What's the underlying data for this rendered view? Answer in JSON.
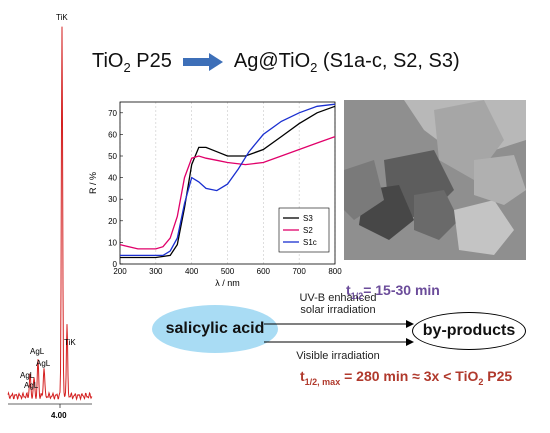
{
  "edx": {
    "peaks": [
      {
        "label": "TiK",
        "height": 1.0
      },
      {
        "label": "TiK",
        "height": 0.18
      },
      {
        "label": "AgL",
        "height": 0.08
      },
      {
        "label": "AgL",
        "height": 0.06
      },
      {
        "label": "AgL",
        "height": 0.05
      },
      {
        "label": "AgL",
        "height": 0.04
      }
    ],
    "axis_label": "4.00"
  },
  "headline": {
    "left": "TiO",
    "left_sub": "2",
    "left_tail": " P25",
    "right": "Ag@TiO",
    "right_sub": "2",
    "right_tail": " (S1a-c, S2, S3)"
  },
  "chart_data": {
    "type": "line",
    "title": "",
    "xlabel": "λ / nm",
    "ylabel": "R / %",
    "xlim": [
      200,
      800
    ],
    "ylim": [
      0,
      75
    ],
    "x_ticks": [
      200,
      300,
      400,
      500,
      600,
      700,
      800
    ],
    "y_ticks": [
      0,
      10,
      20,
      30,
      40,
      50,
      60,
      70
    ],
    "grid": "vertical",
    "legend_position": "right",
    "series": [
      {
        "name": "S3",
        "color": "#000000",
        "x": [
          200,
          250,
          300,
          340,
          360,
          380,
          400,
          420,
          440,
          470,
          500,
          550,
          600,
          650,
          700,
          750,
          800
        ],
        "y": [
          3,
          3,
          3,
          4,
          9,
          26,
          46,
          54,
          54,
          52,
          50,
          50,
          53,
          59,
          65,
          70,
          73
        ]
      },
      {
        "name": "S2",
        "color": "#e0006a",
        "x": [
          200,
          250,
          300,
          320,
          340,
          360,
          380,
          400,
          420,
          440,
          470,
          500,
          550,
          600,
          650,
          700,
          750,
          800
        ],
        "y": [
          9,
          7,
          7,
          8,
          12,
          22,
          40,
          49,
          50,
          49,
          48,
          47,
          46,
          47,
          50,
          53,
          56,
          59
        ]
      },
      {
        "name": "S1c",
        "color": "#1a2fd0",
        "x": [
          200,
          250,
          300,
          320,
          340,
          360,
          380,
          400,
          420,
          440,
          470,
          500,
          530,
          560,
          600,
          650,
          700,
          750,
          800
        ],
        "y": [
          4,
          4,
          4,
          4,
          6,
          12,
          28,
          40,
          38,
          35,
          34,
          37,
          44,
          52,
          60,
          66,
          70,
          73,
          74
        ]
      }
    ]
  },
  "tem": {
    "alt": ""
  },
  "scheme": {
    "reactant": "salicylic acid",
    "product": "by-products",
    "arrow_top_label": "UV-B enhanced\nsolar irradiation",
    "arrow_top_line1": "UV-B enhanced",
    "arrow_top_line2": "solar irradiation",
    "arrow_bottom_label": "Visible irradiation",
    "half_life_top_prefix": "t",
    "half_life_top_sub": "1/2",
    "half_life_top_value": "= 15-30 min",
    "half_life_bottom_prefix": "t",
    "half_life_bottom_sub": "1/2, max",
    "half_life_bottom_value": " = 280 min ≈ 3x < TiO",
    "half_life_bottom_sub2": "2",
    "half_life_bottom_tail": " P25"
  },
  "colors": {
    "edx_trace": "#d42020",
    "arrow_fill": "#3d6fb8",
    "reactant_fill": "#a9dcf4",
    "half_top": "#6b4c9a",
    "half_bottom": "#b0392c"
  }
}
